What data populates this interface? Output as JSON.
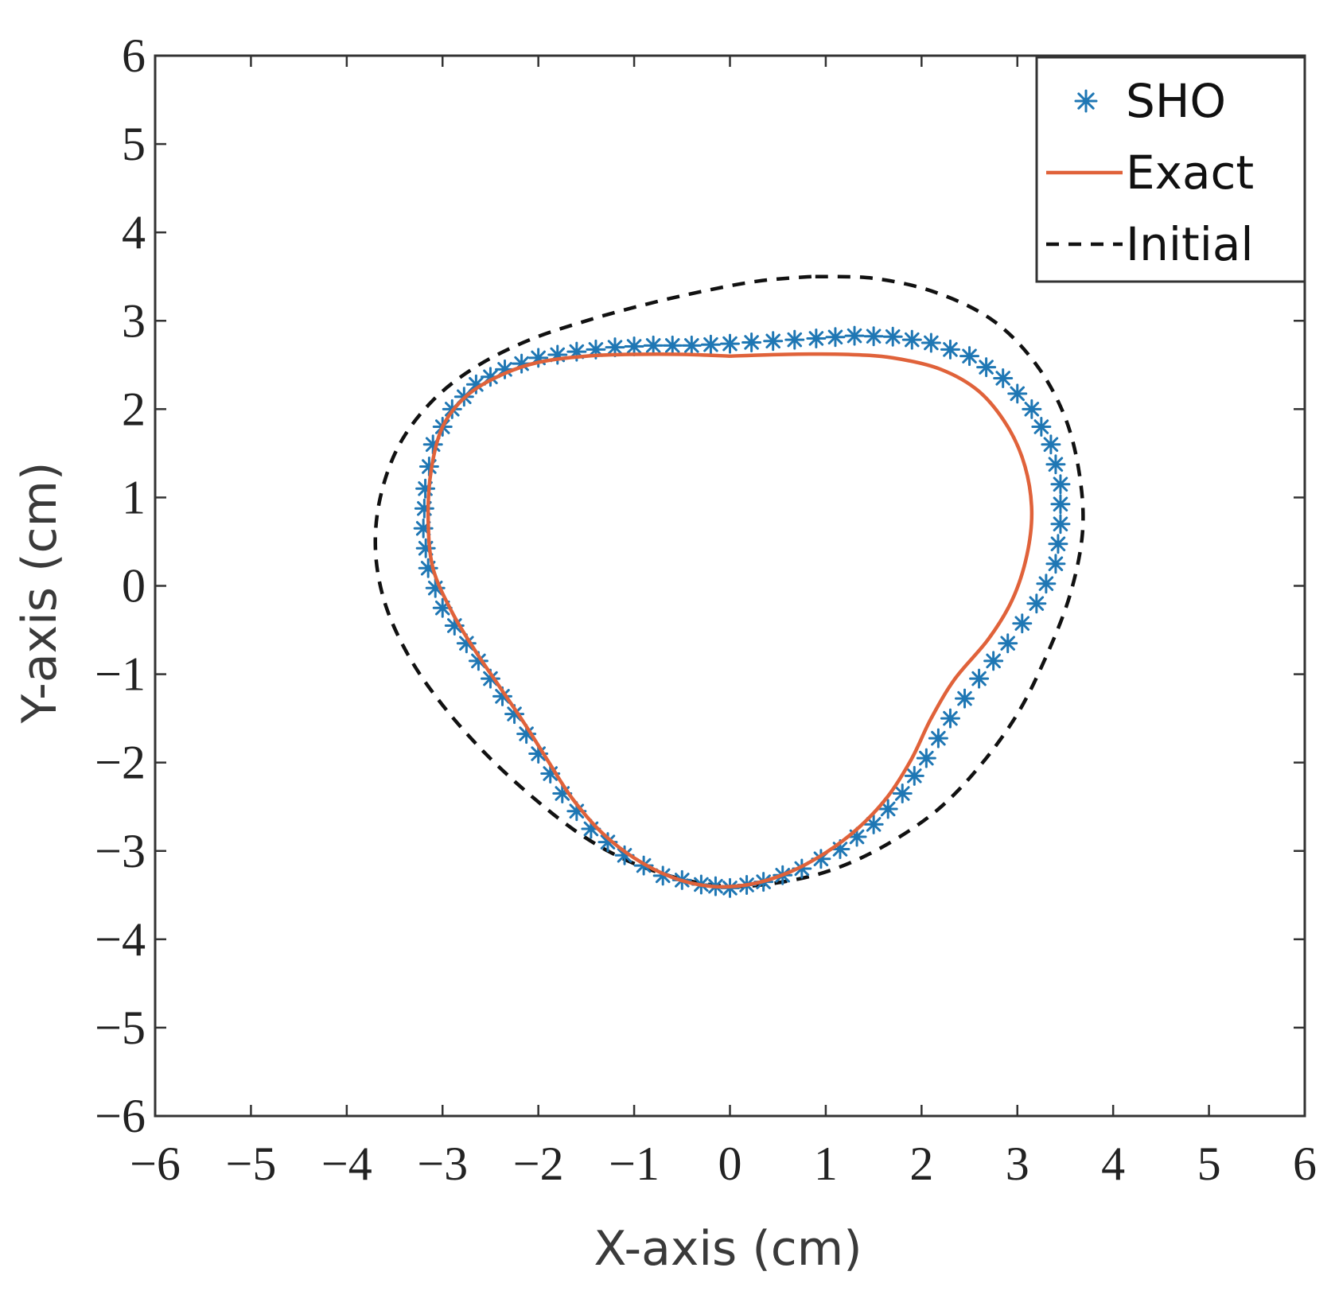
{
  "chart_data": {
    "type": "line",
    "title": "",
    "xlabel": "X-axis (cm)",
    "ylabel": "Y-axis (cm)",
    "xlim": [
      -6,
      6
    ],
    "ylim": [
      -6,
      6
    ],
    "xticks": [
      -6,
      -5,
      -4,
      -3,
      -2,
      -1,
      0,
      1,
      2,
      3,
      4,
      5,
      6
    ],
    "yticks": [
      -6,
      -5,
      -4,
      -3,
      -2,
      -1,
      0,
      1,
      2,
      3,
      4,
      5,
      6
    ],
    "grid": false,
    "legend": {
      "placement": "top-right"
    },
    "series": [
      {
        "name": "SHO",
        "style": "markers",
        "marker": "asterisk",
        "color": "#1f77b4",
        "points": [
          [
            -0.4,
            2.72
          ],
          [
            -0.8,
            2.72
          ],
          [
            -1.2,
            2.7
          ],
          [
            -1.6,
            2.65
          ],
          [
            -2.0,
            2.58
          ],
          [
            -2.35,
            2.45
          ],
          [
            -2.65,
            2.28
          ],
          [
            -2.9,
            2.0
          ],
          [
            -3.1,
            1.6
          ],
          [
            -3.18,
            1.1
          ],
          [
            -3.2,
            0.65
          ],
          [
            -3.15,
            0.2
          ],
          [
            -3.0,
            -0.25
          ],
          [
            -2.75,
            -0.65
          ],
          [
            -2.5,
            -1.05
          ],
          [
            -2.25,
            -1.45
          ],
          [
            -2.0,
            -1.9
          ],
          [
            -1.75,
            -2.35
          ],
          [
            -1.45,
            -2.75
          ],
          [
            -1.1,
            -3.05
          ],
          [
            -0.7,
            -3.28
          ],
          [
            -0.3,
            -3.38
          ],
          [
            0.0,
            -3.42
          ],
          [
            0.35,
            -3.35
          ],
          [
            0.75,
            -3.2
          ],
          [
            1.15,
            -2.98
          ],
          [
            1.5,
            -2.7
          ],
          [
            1.8,
            -2.35
          ],
          [
            2.05,
            -1.95
          ],
          [
            2.3,
            -1.5
          ],
          [
            2.6,
            -1.05
          ],
          [
            2.9,
            -0.65
          ],
          [
            3.2,
            -0.2
          ],
          [
            3.4,
            0.25
          ],
          [
            3.45,
            0.7
          ],
          [
            3.45,
            1.15
          ],
          [
            3.35,
            1.6
          ],
          [
            3.15,
            2.0
          ],
          [
            2.85,
            2.35
          ],
          [
            2.5,
            2.6
          ],
          [
            2.1,
            2.75
          ],
          [
            1.7,
            2.82
          ],
          [
            1.3,
            2.83
          ],
          [
            0.9,
            2.8
          ],
          [
            0.45,
            2.77
          ],
          [
            0.0,
            2.74
          ]
        ]
      },
      {
        "name": "Exact",
        "style": "solid-line",
        "color": "#e0623a",
        "points": [
          [
            0.0,
            2.6
          ],
          [
            -0.5,
            2.62
          ],
          [
            -1.0,
            2.62
          ],
          [
            -1.5,
            2.6
          ],
          [
            -2.0,
            2.53
          ],
          [
            -2.4,
            2.38
          ],
          [
            -2.75,
            2.15
          ],
          [
            -3.0,
            1.8
          ],
          [
            -3.12,
            1.3
          ],
          [
            -3.15,
            0.75
          ],
          [
            -3.1,
            0.2
          ],
          [
            -2.9,
            -0.3
          ],
          [
            -2.65,
            -0.75
          ],
          [
            -2.4,
            -1.15
          ],
          [
            -2.15,
            -1.55
          ],
          [
            -1.9,
            -1.98
          ],
          [
            -1.65,
            -2.4
          ],
          [
            -1.35,
            -2.78
          ],
          [
            -1.0,
            -3.08
          ],
          [
            -0.6,
            -3.3
          ],
          [
            -0.2,
            -3.4
          ],
          [
            0.2,
            -3.38
          ],
          [
            0.6,
            -3.25
          ],
          [
            1.0,
            -3.02
          ],
          [
            1.35,
            -2.73
          ],
          [
            1.65,
            -2.38
          ],
          [
            1.9,
            -1.95
          ],
          [
            2.1,
            -1.5
          ],
          [
            2.35,
            -1.05
          ],
          [
            2.7,
            -0.6
          ],
          [
            2.95,
            -0.15
          ],
          [
            3.1,
            0.35
          ],
          [
            3.15,
            0.85
          ],
          [
            3.08,
            1.35
          ],
          [
            2.9,
            1.8
          ],
          [
            2.6,
            2.2
          ],
          [
            2.2,
            2.45
          ],
          [
            1.7,
            2.58
          ],
          [
            1.2,
            2.62
          ],
          [
            0.6,
            2.62
          ],
          [
            0.0,
            2.6
          ]
        ]
      },
      {
        "name": "Initial",
        "style": "dashed-line",
        "color": "#111111",
        "points": [
          [
            0.85,
            3.5
          ],
          [
            0.3,
            3.45
          ],
          [
            -0.3,
            3.33
          ],
          [
            -0.9,
            3.18
          ],
          [
            -1.5,
            3.0
          ],
          [
            -2.1,
            2.78
          ],
          [
            -2.65,
            2.48
          ],
          [
            -3.1,
            2.1
          ],
          [
            -3.45,
            1.6
          ],
          [
            -3.65,
            1.0
          ],
          [
            -3.7,
            0.4
          ],
          [
            -3.6,
            -0.2
          ],
          [
            -3.35,
            -0.8
          ],
          [
            -3.0,
            -1.35
          ],
          [
            -2.55,
            -1.9
          ],
          [
            -2.05,
            -2.4
          ],
          [
            -1.55,
            -2.82
          ],
          [
            -1.05,
            -3.12
          ],
          [
            -0.5,
            -3.32
          ],
          [
            0.0,
            -3.4
          ],
          [
            0.5,
            -3.36
          ],
          [
            1.05,
            -3.22
          ],
          [
            1.6,
            -2.95
          ],
          [
            2.15,
            -2.55
          ],
          [
            2.6,
            -2.05
          ],
          [
            3.0,
            -1.45
          ],
          [
            3.3,
            -0.8
          ],
          [
            3.55,
            -0.1
          ],
          [
            3.68,
            0.6
          ],
          [
            3.65,
            1.25
          ],
          [
            3.5,
            1.9
          ],
          [
            3.2,
            2.5
          ],
          [
            2.75,
            3.0
          ],
          [
            2.15,
            3.32
          ],
          [
            1.5,
            3.48
          ],
          [
            0.85,
            3.5
          ]
        ]
      }
    ]
  }
}
